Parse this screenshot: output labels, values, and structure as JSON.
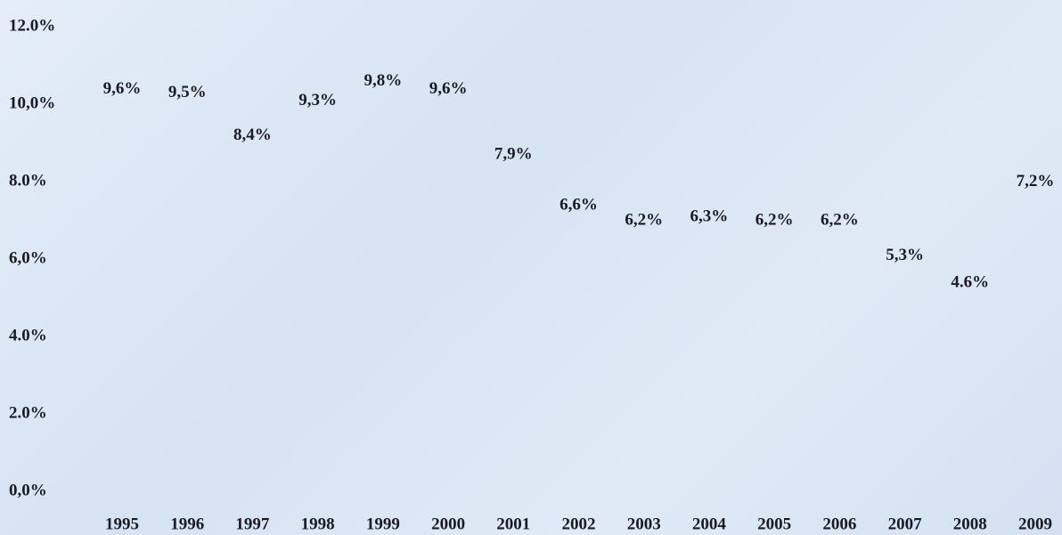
{
  "chart_data": {
    "type": "line",
    "categories": [
      "1995",
      "1996",
      "1997",
      "1998",
      "1999",
      "2000",
      "2001",
      "2002",
      "2003",
      "2004",
      "2005",
      "2006",
      "2007",
      "2008",
      "2009"
    ],
    "values": [
      9.6,
      9.5,
      8.4,
      9.3,
      9.8,
      9.6,
      7.9,
      6.6,
      6.2,
      6.3,
      6.2,
      6.2,
      5.3,
      4.6,
      7.2
    ],
    "value_labels": [
      "9,6%",
      "9,5%",
      "8,4%",
      "9,3%",
      "9,8%",
      "9,6%",
      "7,9%",
      "6,6%",
      "6,2%",
      "6,3%",
      "6,2%",
      "6,2%",
      "5,3%",
      "4.6%",
      "7,2%"
    ],
    "ylim": [
      0,
      12
    ],
    "yticks": [
      {
        "value": 0,
        "label": "0,0%"
      },
      {
        "value": 2,
        "label": "2.0%"
      },
      {
        "value": 4,
        "label": "4.0%"
      },
      {
        "value": 6,
        "label": "6,0%"
      },
      {
        "value": 8,
        "label": "8.0%"
      },
      {
        "value": 10,
        "label": "10,0%"
      },
      {
        "value": 12,
        "label": "12.0%"
      }
    ]
  }
}
